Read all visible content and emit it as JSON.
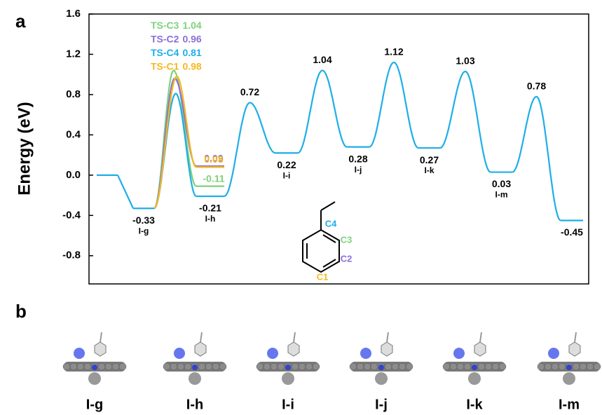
{
  "chart_data": {
    "type": "energy-profile",
    "panel_label": "a",
    "ylabel": "Energy (eV)",
    "ylim": [
      -1.08,
      1.6
    ],
    "yticks": [
      -0.8,
      -0.4,
      {
        "value": 0,
        "label": "0.0"
      },
      0.4,
      0.8,
      1.2,
      1.6
    ],
    "profile": {
      "color": "#1eaee8",
      "states": [
        0,
        -0.33,
        -0.21,
        0.22,
        0.28,
        0.27,
        0.03,
        -0.45
      ],
      "state_labels": [
        null,
        "I-g",
        "I-h",
        "I-i",
        "I-j",
        "I-k",
        "I-m",
        null
      ],
      "barriers": [
        null,
        null,
        0.72,
        1.04,
        1.12,
        1.03,
        0.78
      ]
    },
    "series": [
      {
        "name": "TS-C3",
        "color": "#7ed27b",
        "ts": 1.04,
        "end": -0.11
      },
      {
        "name": "TS-C2",
        "color": "#8b6fd6",
        "ts": 0.96,
        "end": 0.09
      },
      {
        "name": "TS-C4",
        "color": "#1eaee8",
        "ts": 0.81
      },
      {
        "name": "TS-C1",
        "color": "#f5b820",
        "ts": 0.98,
        "end": 0.08
      }
    ],
    "ring_labels": [
      {
        "text": "C4",
        "color": "#1eaee8"
      },
      {
        "text": "C3",
        "color": "#7ed27b"
      },
      {
        "text": "C2",
        "color": "#8b6fd6"
      },
      {
        "text": "C1",
        "color": "#f5b820"
      }
    ]
  },
  "panel_b": {
    "label": "b",
    "structures": [
      "I-g",
      "I-h",
      "I-i",
      "I-j",
      "I-k",
      "I-m"
    ]
  }
}
